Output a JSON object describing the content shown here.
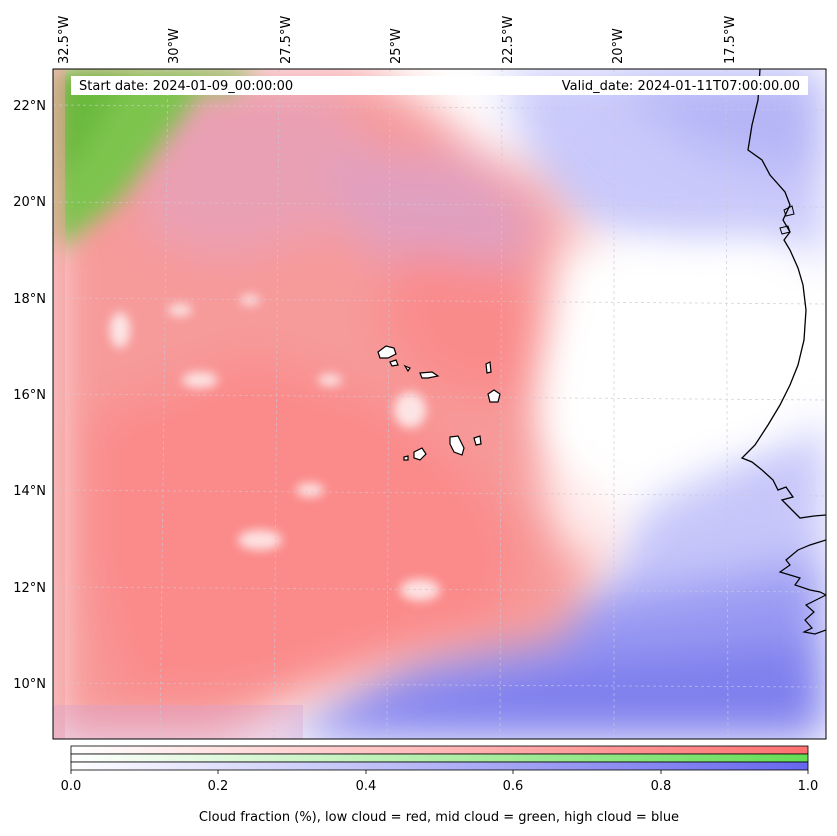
{
  "header": {
    "start_date": "Start date: 2024-01-09_00:00:00",
    "valid_date": "Valid_date: 2024-01-11T07:00:00.00"
  },
  "axes": {
    "longitude_ticks": [
      "32.5°W",
      "30°W",
      "27.5°W",
      "25°W",
      "22.5°W",
      "20°W",
      "17.5°W"
    ],
    "latitude_ticks": [
      "22°N",
      "20°N",
      "18°N",
      "16°N",
      "14°N",
      "12°N",
      "10°N"
    ]
  },
  "colorbar": {
    "ticks": [
      "0.0",
      "0.2",
      "0.4",
      "0.6",
      "0.8",
      "1.0"
    ],
    "label": "Cloud fraction (%), low cloud = red, mid cloud = green, high cloud = blue",
    "colors": {
      "low": "#ff7070",
      "mid": "#66dd55",
      "high": "#6666ee"
    }
  },
  "map": {
    "colors": {
      "low_cloud": "#ff8080",
      "mid_cloud": "#74c442",
      "high_cloud": "#8080f0",
      "coastline": "#000000",
      "gridline": "#c8c8d8"
    }
  }
}
